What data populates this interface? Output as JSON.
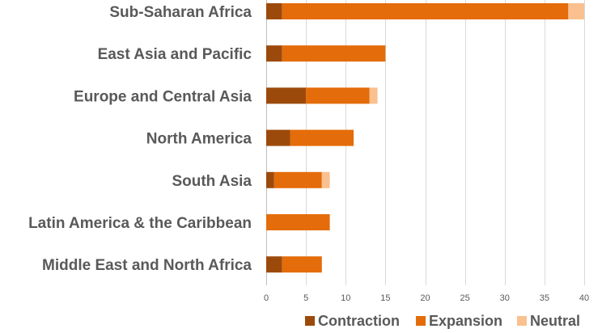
{
  "chart_data": {
    "type": "bar",
    "orientation": "horizontal",
    "stacked": true,
    "categories": [
      "Sub-Saharan Africa",
      "East Asia and Pacific",
      "Europe and Central Asia",
      "North America",
      "South Asia",
      "Latin America & the Caribbean",
      "Middle East and North Africa"
    ],
    "series": [
      {
        "name": "Contraction",
        "color": "#9C4A0C",
        "values": [
          2,
          2,
          5,
          3,
          1,
          0,
          2
        ]
      },
      {
        "name": "Expansion",
        "color": "#E46C0A",
        "values": [
          36,
          13,
          8,
          8,
          6,
          8,
          5
        ]
      },
      {
        "name": "Neutral",
        "color": "#FAC090",
        "values": [
          2,
          0,
          1,
          0,
          1,
          0,
          0
        ]
      }
    ],
    "xticks": [
      "0",
      "5",
      "10",
      "15",
      "20",
      "25",
      "30",
      "35",
      "40"
    ],
    "xlim": [
      0,
      40
    ],
    "grid": "vertical",
    "legend_position": "bottom-right",
    "title": "",
    "xlabel": "",
    "ylabel": ""
  }
}
